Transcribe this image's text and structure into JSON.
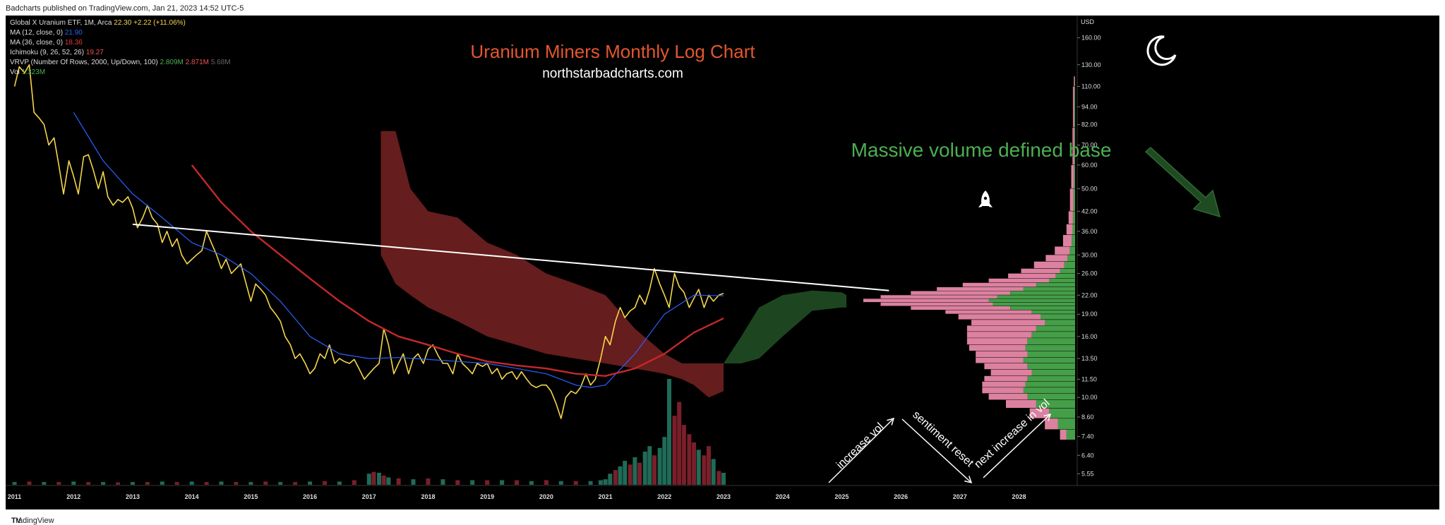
{
  "header": {
    "publish_line": "Badcharts published on TradingView.com, Jan 21, 2023 14:52 UTC-5"
  },
  "legend": {
    "symbol_label": "Global X Uranium ETF, 1M, Arca",
    "symbol_price": "22.30",
    "symbol_change": "+2.22 (+11.06%)",
    "ma12_label": "MA (12, close, 0)",
    "ma12_value": "21.90",
    "ma36_label": "MA (36, close, 0)",
    "ma36_value": "18.36",
    "ichimoku_label": "Ichimoku (9, 26, 52, 26)",
    "ichimoku_value": "19.27",
    "vrvp_label": "VRVP (Number Of Rows, 2000, Up/Down, 100)",
    "vrvp_v1": "2.809M",
    "vrvp_v2": "2.871M",
    "vrvp_v3": "5.68M",
    "vol_label": "Vol",
    "vol_value": "1.323M"
  },
  "annotations": {
    "title": "Uranium Miners Monthly Log Chart",
    "site": "northstarbadcharts.com",
    "base_note": "Massive volume defined base",
    "arrow1": "increase vol",
    "arrow2": "sentiment reset",
    "arrow3": "next increase in vol"
  },
  "footer": {
    "brand": "TradingView"
  },
  "colors": {
    "background": "#000000",
    "price_line": "#f5d64b",
    "ma12": "#2962ff",
    "ma36": "#c62828",
    "cloud_bear": "#6b1f1f",
    "cloud_bull": "#1f4a22",
    "volume_up": "#1f6b57",
    "volume_down": "#7a1f2a",
    "title_color": "#e4572e",
    "base_note_color": "#4caf50",
    "vrvp_up": "#4caf50",
    "vrvp_down": "#f48fb1",
    "trendline": "#ffffff"
  },
  "icons": {
    "moon": "crescent-moon-icon",
    "rocket": "rocket-icon"
  },
  "chart_data": {
    "type": "line",
    "scale": "log",
    "x_ticks": [
      "2011",
      "2012",
      "2013",
      "2014",
      "2015",
      "2016",
      "2017",
      "2018",
      "2019",
      "2020",
      "2021",
      "2022",
      "2023",
      "2024",
      "2025",
      "2026",
      "2027",
      "2028"
    ],
    "y_axis_unit": "USD",
    "y_ticks": [
      "160.00",
      "130.00",
      "110.00",
      "94.00",
      "82.00",
      "70.00",
      "60.00",
      "50.00",
      "42.00",
      "36.00",
      "30.00",
      "26.00",
      "22.00",
      "19.00",
      "16.00",
      "13.50",
      "11.50",
      "10.00",
      "8.60",
      "7.40",
      "6.40",
      "5.55"
    ],
    "y_tick_values": [
      160,
      130,
      110,
      94,
      82,
      70,
      60,
      50,
      42,
      36,
      30,
      26,
      22,
      19,
      16,
      13.5,
      11.5,
      10,
      8.6,
      7.4,
      6.4,
      5.55
    ],
    "ylim": [
      5.1,
      190
    ],
    "xlim": [
      2010.85,
      2028.95
    ],
    "series": [
      {
        "name": "Global X Uranium ETF",
        "x": [
          2011.0,
          2011.08,
          2011.17,
          2011.25,
          2011.33,
          2011.42,
          2011.5,
          2011.58,
          2011.67,
          2011.75,
          2011.83,
          2011.92,
          2012.0,
          2012.08,
          2012.17,
          2012.25,
          2012.33,
          2012.42,
          2012.5,
          2012.58,
          2012.67,
          2012.75,
          2012.83,
          2012.92,
          2013.0,
          2013.08,
          2013.17,
          2013.25,
          2013.33,
          2013.42,
          2013.5,
          2013.58,
          2013.67,
          2013.75,
          2013.83,
          2013.92,
          2014.0,
          2014.08,
          2014.17,
          2014.25,
          2014.33,
          2014.42,
          2014.5,
          2014.58,
          2014.67,
          2014.75,
          2014.83,
          2014.92,
          2015.0,
          2015.08,
          2015.17,
          2015.25,
          2015.33,
          2015.42,
          2015.5,
          2015.58,
          2015.67,
          2015.75,
          2015.83,
          2015.92,
          2016.0,
          2016.08,
          2016.17,
          2016.25,
          2016.33,
          2016.42,
          2016.5,
          2016.58,
          2016.67,
          2016.75,
          2016.83,
          2016.92,
          2017.0,
          2017.08,
          2017.17,
          2017.25,
          2017.33,
          2017.42,
          2017.5,
          2017.58,
          2017.67,
          2017.75,
          2017.83,
          2017.92,
          2018.0,
          2018.08,
          2018.17,
          2018.25,
          2018.33,
          2018.42,
          2018.5,
          2018.58,
          2018.67,
          2018.75,
          2018.83,
          2018.92,
          2019.0,
          2019.08,
          2019.17,
          2019.25,
          2019.33,
          2019.42,
          2019.5,
          2019.58,
          2019.67,
          2019.75,
          2019.83,
          2019.92,
          2020.0,
          2020.08,
          2020.17,
          2020.25,
          2020.33,
          2020.42,
          2020.5,
          2020.58,
          2020.67,
          2020.75,
          2020.83,
          2020.92,
          2021.0,
          2021.08,
          2021.17,
          2021.25,
          2021.33,
          2021.42,
          2021.5,
          2021.58,
          2021.67,
          2021.75,
          2021.83,
          2021.92,
          2022.0,
          2022.08,
          2022.17,
          2022.25,
          2022.33,
          2022.42,
          2022.5,
          2022.58,
          2022.67,
          2022.75,
          2022.83,
          2022.92,
          2023.0
        ],
        "values": [
          110,
          128,
          122,
          130,
          90,
          86,
          82,
          70,
          74,
          60,
          48,
          62,
          55,
          48,
          64,
          65,
          58,
          50,
          57,
          47,
          44,
          46,
          45,
          47,
          43,
          37,
          40,
          44,
          40,
          38,
          33,
          36,
          32,
          34,
          30,
          28,
          29,
          30,
          31,
          36,
          33,
          30,
          27,
          29,
          26,
          27,
          28,
          24,
          21,
          24,
          23,
          22,
          20,
          19,
          18,
          16,
          15,
          13.5,
          14,
          13,
          12,
          12.5,
          14,
          13.5,
          15,
          13,
          13.5,
          13.2,
          13,
          13.4,
          12.5,
          11.5,
          12,
          12.5,
          13,
          17,
          15,
          12,
          13,
          14,
          12,
          13.5,
          14,
          13,
          14.5,
          15,
          13.8,
          13,
          13,
          12,
          14,
          13,
          12.5,
          12,
          13,
          12.7,
          13,
          12,
          12.5,
          11.5,
          12,
          12.2,
          11.5,
          12.2,
          11.5,
          11,
          10.8,
          11,
          11,
          10.5,
          9.5,
          8.5,
          10,
          10.5,
          10.3,
          10.8,
          12,
          11,
          11.5,
          13.5,
          16,
          15,
          18,
          20,
          18.5,
          19.5,
          20,
          22,
          20.5,
          23,
          27,
          24,
          22,
          20,
          26,
          23.5,
          22.5,
          20,
          21.5,
          23,
          20,
          22,
          21,
          22,
          22.3
        ]
      },
      {
        "name": "MA (12, close, 0)",
        "x": [
          2012.0,
          2012.5,
          2013.0,
          2013.5,
          2014.0,
          2014.5,
          2015.0,
          2015.5,
          2016.0,
          2016.5,
          2017.0,
          2017.5,
          2018.0,
          2018.5,
          2019.0,
          2019.5,
          2020.0,
          2020.5,
          2020.75,
          2021.0,
          2021.5,
          2022.0,
          2022.5,
          2023.0
        ],
        "values": [
          90,
          62,
          48,
          40,
          33,
          30,
          26,
          21,
          16,
          14,
          13.5,
          13.6,
          13.4,
          13.2,
          13,
          12.5,
          12,
          11,
          10.8,
          11,
          14,
          19,
          22,
          21.9
        ]
      },
      {
        "name": "MA (36, close, 0)",
        "x": [
          2014.0,
          2014.5,
          2015.0,
          2015.5,
          2016.0,
          2016.5,
          2017.0,
          2017.5,
          2018.0,
          2018.5,
          2019.0,
          2019.5,
          2020.0,
          2020.5,
          2021.0,
          2021.5,
          2022.0,
          2022.5,
          2023.0
        ],
        "values": [
          60,
          45,
          36,
          30,
          25,
          21,
          18,
          16,
          15,
          14,
          13.2,
          12.8,
          12.5,
          12,
          11.8,
          12.5,
          14,
          16.5,
          18.4
        ]
      }
    ],
    "trendline": {
      "x": [
        2013.0,
        2025.8
      ],
      "values": [
        38,
        22.8
      ]
    },
    "volume": {
      "x": [
        2011.0,
        2011.25,
        2011.5,
        2011.75,
        2012.0,
        2012.25,
        2012.5,
        2012.75,
        2013.0,
        2013.25,
        2013.5,
        2013.75,
        2014.0,
        2014.25,
        2014.5,
        2014.75,
        2015.0,
        2015.25,
        2015.5,
        2015.75,
        2016.0,
        2016.25,
        2016.5,
        2016.75,
        2017.0,
        2017.08,
        2017.17,
        2017.25,
        2017.33,
        2017.5,
        2017.75,
        2018.0,
        2018.25,
        2018.5,
        2018.75,
        2019.0,
        2019.25,
        2019.5,
        2019.75,
        2020.0,
        2020.25,
        2020.5,
        2020.75,
        2020.92,
        2021.0,
        2021.08,
        2021.17,
        2021.25,
        2021.33,
        2021.42,
        2021.5,
        2021.58,
        2021.67,
        2021.75,
        2021.83,
        2021.92,
        2022.0,
        2022.08,
        2022.17,
        2022.25,
        2022.33,
        2022.42,
        2022.5,
        2022.58,
        2022.67,
        2022.75,
        2022.83,
        2022.92,
        2023.0
      ],
      "values": [
        0.3,
        0.35,
        0.3,
        0.3,
        0.35,
        0.3,
        0.3,
        0.25,
        0.3,
        0.3,
        0.35,
        0.3,
        0.35,
        0.3,
        0.35,
        0.3,
        0.3,
        0.35,
        0.3,
        0.3,
        0.35,
        0.4,
        0.35,
        0.5,
        1.2,
        1.4,
        1.3,
        1.0,
        0.8,
        0.7,
        0.6,
        0.7,
        0.6,
        0.5,
        0.5,
        0.5,
        0.5,
        0.5,
        0.4,
        0.5,
        0.4,
        0.4,
        0.4,
        0.5,
        0.6,
        1.2,
        1.6,
        2.0,
        2.6,
        2.2,
        3.0,
        2.4,
        3.6,
        4.2,
        3.2,
        4.0,
        5.2,
        11.5,
        7.5,
        9.0,
        6.5,
        5.5,
        4.6,
        3.8,
        3.2,
        4.2,
        2.8,
        1.5,
        1.3
      ],
      "up": [
        1,
        0,
        1,
        0,
        1,
        0,
        1,
        0,
        1,
        0,
        1,
        0,
        1,
        0,
        1,
        0,
        1,
        0,
        1,
        0,
        1,
        0,
        1,
        0,
        1,
        0,
        1,
        0,
        1,
        0,
        1,
        0,
        1,
        0,
        1,
        0,
        1,
        0,
        1,
        0,
        1,
        0,
        1,
        1,
        1,
        1,
        0,
        1,
        1,
        0,
        1,
        0,
        1,
        1,
        0,
        1,
        1,
        1,
        0,
        0,
        0,
        0,
        0,
        1,
        0,
        0,
        1,
        0,
        1
      ]
    },
    "ichimoku_cloud": {
      "bear": {
        "x": [
          2017.2,
          2017.45,
          2017.7,
          2018.0,
          2018.5,
          2019.0,
          2019.5,
          2020.0,
          2020.5,
          2021.0,
          2021.5,
          2022.0,
          2022.3,
          2022.5,
          2022.75,
          2023.0
        ],
        "top": [
          78,
          78,
          50,
          42,
          40,
          33,
          30,
          26,
          24,
          22,
          17,
          14,
          13,
          13,
          13,
          13
        ],
        "bottom": [
          30,
          24,
          22,
          20,
          18,
          16,
          15,
          14,
          13.5,
          13,
          12.5,
          12,
          11.5,
          11,
          10,
          10.5
        ]
      },
      "bull": {
        "x": [
          2023.0,
          2023.3,
          2023.6,
          2024.0,
          2024.5,
          2025.0,
          2025.08
        ],
        "top": [
          13,
          16,
          20,
          22,
          22.8,
          22.5,
          22
        ],
        "bottom": [
          13,
          13,
          13.5,
          16,
          19.5,
          20,
          20
        ]
      }
    },
    "vrvp": {
      "price": [
        7.2,
        7.8,
        8.5,
        9.2,
        9.8,
        10.3,
        10.8,
        11.3,
        11.8,
        12.4,
        13,
        13.6,
        14.3,
        15,
        15.8,
        16.6,
        17.4,
        18.2,
        19,
        19.6,
        20.2,
        20.8,
        21.4,
        22,
        22.7,
        23.4,
        24.2,
        25,
        26,
        27,
        28.5,
        30,
        32,
        35,
        38,
        42,
        50,
        60,
        80,
        110
      ],
      "up": [
        20,
        40,
        60,
        90,
        110,
        120,
        115,
        110,
        100,
        110,
        120,
        110,
        115,
        110,
        100,
        90,
        70,
        80,
        100,
        150,
        190,
        200,
        180,
        150,
        120,
        90,
        60,
        45,
        35,
        25,
        18,
        12,
        8,
        6,
        5,
        4,
        3,
        2,
        2,
        1
      ],
      "down": [
        15,
        30,
        45,
        70,
        90,
        95,
        100,
        100,
        95,
        100,
        110,
        120,
        130,
        140,
        150,
        160,
        170,
        190,
        200,
        230,
        260,
        290,
        270,
        230,
        200,
        170,
        140,
        110,
        90,
        70,
        50,
        35,
        20,
        14,
        10,
        8,
        6,
        4,
        3,
        2
      ]
    }
  }
}
